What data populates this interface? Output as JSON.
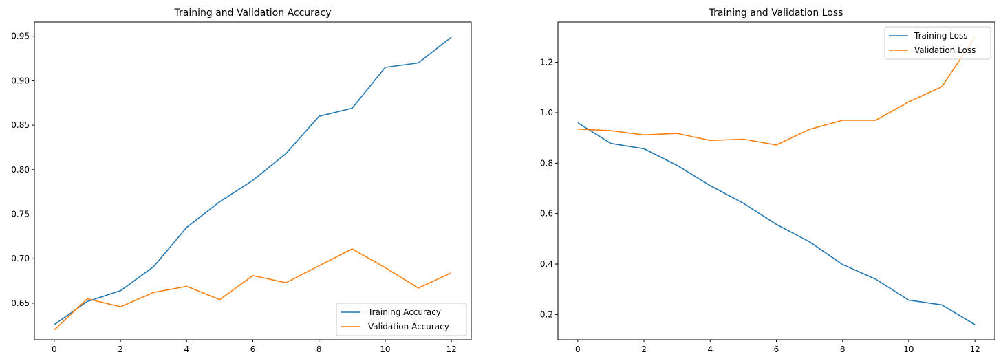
{
  "chart_data": [
    {
      "type": "line",
      "title": "Training and Validation Accuracy",
      "xlabel": "",
      "ylabel": "",
      "x": [
        0,
        1,
        2,
        3,
        4,
        5,
        6,
        7,
        8,
        9,
        10,
        11,
        12
      ],
      "xlim": [
        -0.6,
        12.6
      ],
      "ylim": [
        0.609,
        0.966
      ],
      "xticks": [
        0,
        2,
        4,
        6,
        8,
        10,
        12
      ],
      "yticks": [
        0.65,
        0.7,
        0.75,
        0.8,
        0.85,
        0.9,
        0.95
      ],
      "grid": false,
      "legend_loc": "lower right",
      "series": [
        {
          "name": "Training Accuracy",
          "color": "#1f77b4",
          "values": [
            0.626,
            0.652,
            0.664,
            0.691,
            0.735,
            0.764,
            0.788,
            0.818,
            0.86,
            0.869,
            0.915,
            0.92,
            0.949
          ]
        },
        {
          "name": "Validation Accuracy",
          "color": "#ff7f0e",
          "values": [
            0.62,
            0.655,
            0.646,
            0.662,
            0.669,
            0.654,
            0.681,
            0.673,
            0.692,
            0.711,
            0.69,
            0.667,
            0.684
          ]
        }
      ]
    },
    {
      "type": "line",
      "title": "Training and Validation Loss",
      "xlabel": "",
      "ylabel": "",
      "x": [
        0,
        1,
        2,
        3,
        4,
        5,
        6,
        7,
        8,
        9,
        10,
        11,
        12
      ],
      "xlim": [
        -0.6,
        12.6
      ],
      "ylim": [
        0.1,
        1.36
      ],
      "xticks": [
        0,
        2,
        4,
        6,
        8,
        10,
        12
      ],
      "yticks": [
        0.2,
        0.4,
        0.6,
        0.8,
        1.0,
        1.2
      ],
      "grid": false,
      "legend_loc": "upper right",
      "series": [
        {
          "name": "Training Loss",
          "color": "#1f77b4",
          "values": [
            0.96,
            0.878,
            0.857,
            0.791,
            0.711,
            0.641,
            0.557,
            0.488,
            0.398,
            0.34,
            0.257,
            0.238,
            0.16
          ]
        },
        {
          "name": "Validation Loss",
          "color": "#ff7f0e",
          "values": [
            0.935,
            0.929,
            0.912,
            0.918,
            0.89,
            0.895,
            0.872,
            0.934,
            0.97,
            0.97,
            1.043,
            1.103,
            1.3
          ]
        }
      ]
    }
  ]
}
